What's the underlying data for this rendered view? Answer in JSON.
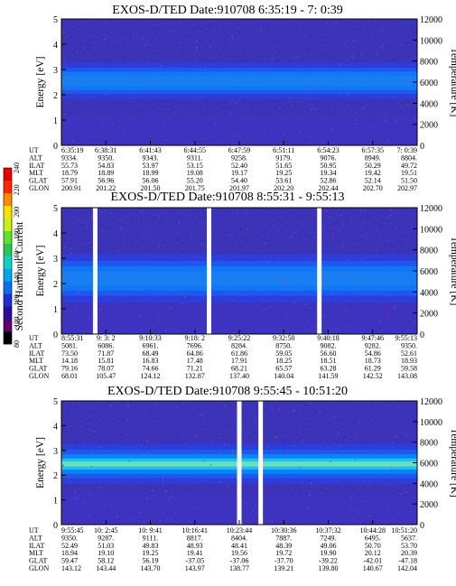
{
  "chart_data": [
    {
      "type": "heatmap",
      "title": "EXOS-D/TED   Date:910708   6:35:19 - 7: 0:39",
      "ylabel": "Energy [eV]",
      "ylabel_right": "Temperature [K]",
      "ylim": [
        0,
        5
      ],
      "yticks": [
        "0",
        "1",
        "2",
        "3",
        "4",
        "5"
      ],
      "ylim_right": [
        0,
        12000
      ],
      "yticks_right": [
        "0",
        "2000",
        "4000",
        "6000",
        "8000",
        "10000",
        "12000"
      ],
      "band_center_ev": 2.55,
      "band_halfwidth_ev": 0.45,
      "gaps": [],
      "info_rows": [
        {
          "label": "UT",
          "values": [
            "6:35:19",
            "6:38:31",
            "6:41:43",
            "6:44:55",
            "6:47:59",
            "6:51:11",
            "6:54:23",
            "6:57:35",
            "7: 0:39"
          ]
        },
        {
          "label": "ALT",
          "values": [
            "9334.",
            "9350.",
            "9343.",
            "9311.",
            "9258.",
            "9179.",
            "9076.",
            "8949.",
            "8804."
          ]
        },
        {
          "label": "ILAT",
          "values": [
            "55.73",
            "54.83",
            "53.97",
            "53.15",
            "52.40",
            "51.65",
            "50.95",
            "50.29",
            "49.72"
          ]
        },
        {
          "label": "MLT",
          "values": [
            "18.79",
            "18.89",
            "18.99",
            "19.08",
            "19.17",
            "19.25",
            "19.34",
            "19.42",
            "19.51"
          ]
        },
        {
          "label": "GLAT",
          "values": [
            "57.91",
            "56.96",
            "56.06",
            "55.20",
            "54.40",
            "53.61",
            "52.86",
            "52.14",
            "51.50"
          ]
        },
        {
          "label": "GLON",
          "values": [
            "200.91",
            "201.22",
            "201.50",
            "201.75",
            "201.97",
            "202.20",
            "202.44",
            "202.70",
            "202.97"
          ]
        }
      ]
    },
    {
      "type": "heatmap",
      "title": "EXOS-D/TED   Date:910708   8:55:31 - 9:55:13",
      "ylabel": "Energy [eV]",
      "ylabel_right": "Temperature [K]",
      "ylim": [
        0,
        5
      ],
      "yticks": [
        "0",
        "1",
        "2",
        "3",
        "4",
        "5"
      ],
      "ylim_right": [
        0,
        12000
      ],
      "yticks_right": [
        "0",
        "2000",
        "4000",
        "6000",
        "8000",
        "10000",
        "12000"
      ],
      "band_center_ev": 2.2,
      "band_halfwidth_ev": 0.6,
      "gaps": [
        0.095,
        0.415,
        0.725
      ],
      "info_rows": [
        {
          "label": "UT",
          "values": [
            "8:55:31",
            "9: 3: 2",
            "9:10:33",
            "9:18: 2",
            "9:25:22",
            "9:32:50",
            "9:40:18",
            "9:47:46",
            "9:55:13"
          ]
        },
        {
          "label": "ALT",
          "values": [
            "5081.",
            "6086.",
            "6961.",
            "7696.",
            "8284.",
            "8750.",
            "9082.",
            "9282.",
            "9350."
          ]
        },
        {
          "label": "ILAT",
          "values": [
            "73.50",
            "71.87",
            "68.49",
            "64.86",
            "61.86",
            "59.05",
            "56.60",
            "54.86",
            "52.61"
          ]
        },
        {
          "label": "MLT",
          "values": [
            "14.18",
            "15.81",
            "16.83",
            "17.48",
            "17.91",
            "18.25",
            "18.51",
            "18.73",
            "18.93"
          ]
        },
        {
          "label": "GLAT",
          "values": [
            "79.16",
            "78.07",
            "74.66",
            "71.21",
            "68.21",
            "65.57",
            "63.28",
            "61.29",
            "59.58"
          ]
        },
        {
          "label": "GLON",
          "values": [
            "68.01",
            "105.47",
            "124.12",
            "132.87",
            "137.40",
            "140.04",
            "141.59",
            "142.52",
            "143.08"
          ]
        }
      ]
    },
    {
      "type": "heatmap",
      "title": "EXOS-D/TED   Date:910708   9:55:45 - 10:51:20",
      "ylabel": "Energy [eV]",
      "ylabel_right": "Temperature [K]",
      "ylim": [
        0,
        5
      ],
      "yticks": [
        "0",
        "1",
        "2",
        "3",
        "4",
        "5"
      ],
      "ylim_right": [
        0,
        12000
      ],
      "yticks_right": [
        "0",
        "2000",
        "4000",
        "6000",
        "8000",
        "10000",
        "12000"
      ],
      "band_center_ev": 2.45,
      "band_halfwidth_ev": 0.5,
      "gaps": [
        0.5,
        0.56
      ],
      "info_rows": [
        {
          "label": "UT",
          "values": [
            "9:55:45",
            "10: 2:45",
            "10: 9:41",
            "10:16:41",
            "10:23:44",
            "10:30:36",
            "10:37:32",
            "10:44:28",
            "10:51:20"
          ]
        },
        {
          "label": "ALT",
          "values": [
            "9350.",
            "9287.",
            "9111.",
            "8817.",
            "8404.",
            "7887.",
            "7249.",
            "6495.",
            "5637."
          ]
        },
        {
          "label": "ILAT",
          "values": [
            "52.49",
            "51.03",
            "49.83",
            "48.93",
            "48.41",
            "48.39",
            "49.06",
            "50.70",
            "53.70"
          ]
        },
        {
          "label": "MLT",
          "values": [
            "18.94",
            "19.10",
            "19.25",
            "19.41",
            "19.56",
            "19.72",
            "19.90",
            "20.12",
            "20.39"
          ]
        },
        {
          "label": "GLAT",
          "values": [
            "59.47",
            "58.12",
            "56.19",
            "-37.05",
            "-37.06",
            "-37.70",
            "-39.22",
            "-42.01",
            "-47.18"
          ]
        },
        {
          "label": "GLON",
          "values": [
            "143.12",
            "143.44",
            "143.70",
            "143.97",
            "138.77",
            "139.21",
            "139.80",
            "140.67",
            "142.04"
          ]
        }
      ]
    }
  ],
  "colorbar": {
    "label": "Second Harmonic Current",
    "ticks": [
      "80",
      "100",
      "120",
      "140",
      "160",
      "180",
      "200",
      "220",
      "240"
    ],
    "colors": [
      "#000000",
      "#5b006e",
      "#2a0d9a",
      "#1e2fd8",
      "#0a6ef2",
      "#00a6f0",
      "#12d2c2",
      "#27c857",
      "#5ee32d",
      "#c8ee1b",
      "#ffe000",
      "#ff8a00",
      "#ff2a00",
      "#e80000"
    ]
  }
}
